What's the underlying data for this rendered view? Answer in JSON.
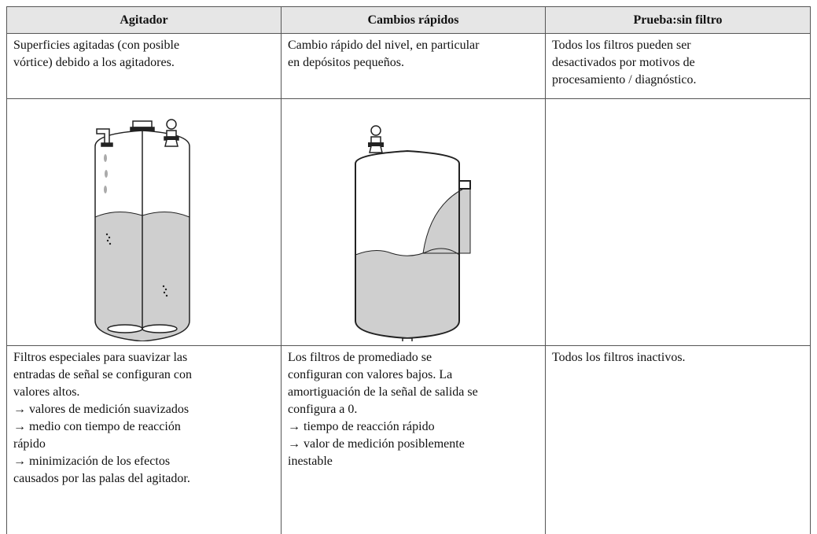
{
  "table": {
    "header": [
      "Agitador",
      "Cambios rápidos",
      "Prueba:sin filtro"
    ],
    "description": [
      [
        "Superficies agitadas (con posible",
        "vórtice) debido a los agitadores."
      ],
      [
        "Cambio rápido del nivel, en particular",
        "en depósitos pequeños."
      ],
      [
        "Todos los filtros pueden ser",
        "desactivados por motivos de",
        "procesamiento / diagnóstico."
      ]
    ],
    "result": [
      [
        "Filtros especiales para suavizar las",
        "entradas de señal se configuran con",
        "valores altos.",
        "→ valores de medición suavizados",
        "→ medio con tiempo de reacción",
        "rápido",
        "→ minimización de los efectos",
        "causados por las palas del agitador."
      ],
      [
        "Los filtros de promediado se",
        "configuran con valores bajos. La",
        "amortiguación de la señal de salida se",
        "configura a 0.",
        "→ tiempo de reacción rápido",
        "→ valor de medición posiblemente",
        "inestable"
      ],
      [
        "Todos los filtros inactivos."
      ]
    ]
  }
}
